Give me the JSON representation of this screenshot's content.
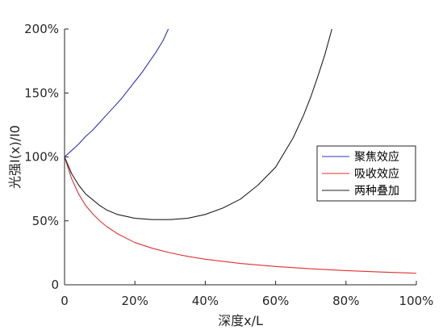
{
  "chart_data": {
    "type": "line",
    "xlabel": "深度x/L",
    "ylabel": "光强I(x)/I0",
    "xlim": [
      0,
      1
    ],
    "ylim": [
      0,
      2
    ],
    "x_ticks": [
      {
        "value": 0,
        "label": "0"
      },
      {
        "value": 0.2,
        "label": "20%"
      },
      {
        "value": 0.4,
        "label": "40%"
      },
      {
        "value": 0.6,
        "label": "60%"
      },
      {
        "value": 0.8,
        "label": "80%"
      },
      {
        "value": 1.0,
        "label": "100%"
      }
    ],
    "y_ticks": [
      {
        "value": 0,
        "label": "0"
      },
      {
        "value": 0.5,
        "label": "50%"
      },
      {
        "value": 1.0,
        "label": "100%"
      },
      {
        "value": 1.5,
        "label": "150%"
      },
      {
        "value": 2.0,
        "label": "200%"
      }
    ],
    "grid": false,
    "legend_position": "right",
    "series": [
      {
        "name": "聚焦效应",
        "color": "#3030c0",
        "x": [
          0,
          0.02,
          0.04,
          0.06,
          0.08,
          0.1,
          0.12,
          0.14,
          0.16,
          0.18,
          0.2,
          0.22,
          0.24,
          0.26,
          0.28,
          0.295
        ],
        "y": [
          1.0,
          1.05,
          1.1,
          1.16,
          1.21,
          1.27,
          1.33,
          1.39,
          1.45,
          1.52,
          1.59,
          1.66,
          1.74,
          1.82,
          1.91,
          2.0
        ]
      },
      {
        "name": "吸收效应",
        "color": "#e03030",
        "x": [
          0,
          0.02,
          0.04,
          0.06,
          0.08,
          0.1,
          0.12,
          0.15,
          0.2,
          0.25,
          0.3,
          0.35,
          0.4,
          0.5,
          0.6,
          0.7,
          0.8,
          0.9,
          1.0
        ],
        "y": [
          1.0,
          0.83,
          0.71,
          0.62,
          0.555,
          0.5,
          0.455,
          0.4,
          0.33,
          0.285,
          0.25,
          0.222,
          0.2,
          0.167,
          0.143,
          0.125,
          0.111,
          0.1,
          0.09
        ]
      },
      {
        "name": "两种叠加",
        "color": "#202020",
        "x": [
          0,
          0.02,
          0.04,
          0.06,
          0.08,
          0.1,
          0.12,
          0.15,
          0.2,
          0.25,
          0.3,
          0.35,
          0.4,
          0.45,
          0.5,
          0.55,
          0.6,
          0.65,
          0.68,
          0.7,
          0.72,
          0.74,
          0.76
        ],
        "y": [
          1.0,
          0.87,
          0.78,
          0.71,
          0.665,
          0.62,
          0.585,
          0.55,
          0.52,
          0.51,
          0.51,
          0.52,
          0.55,
          0.6,
          0.67,
          0.78,
          0.92,
          1.15,
          1.33,
          1.47,
          1.63,
          1.8,
          2.0
        ]
      }
    ]
  }
}
